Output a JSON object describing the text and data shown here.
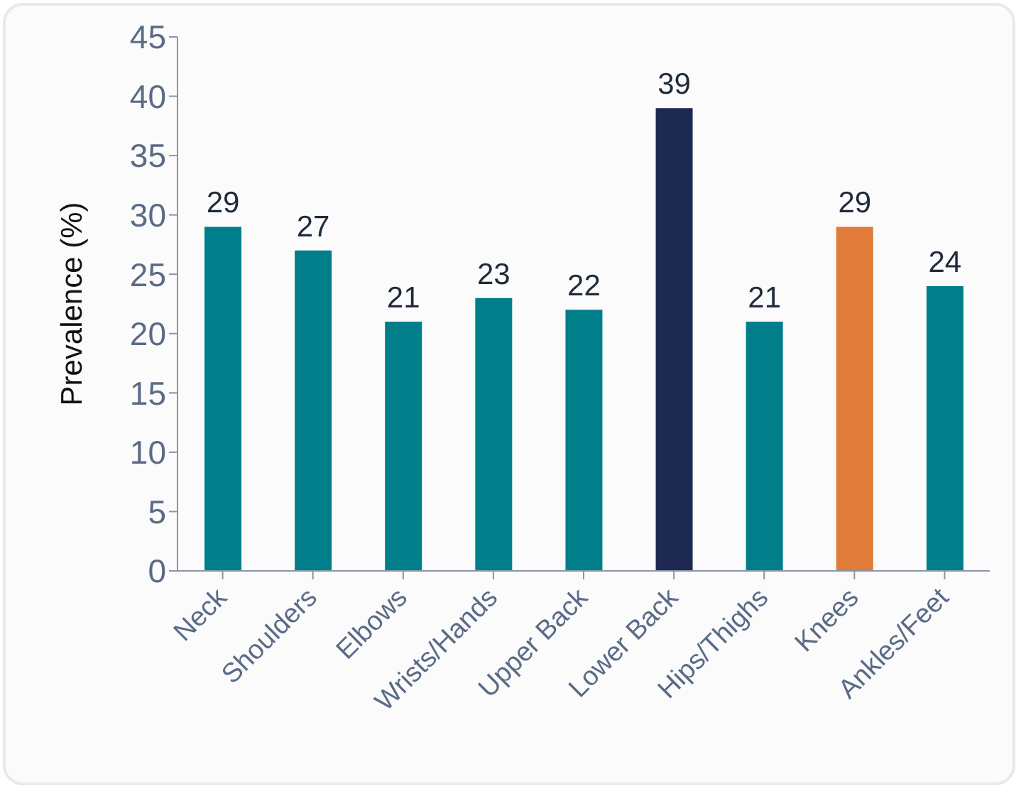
{
  "chart_data": {
    "type": "bar",
    "ylabel": "Prevalence (%)",
    "categories": [
      "Neck",
      "Shoulders",
      "Elbows",
      "Wrists/Hands",
      "Upper Back",
      "Lower Back",
      "Hips/Thighs",
      "Knees",
      "Ankles/Feet"
    ],
    "values": [
      29,
      27,
      21,
      23,
      22,
      39,
      21,
      29,
      24
    ],
    "colors": [
      "#007f8a",
      "#007f8a",
      "#007f8a",
      "#007f8a",
      "#007f8a",
      "#1d2950",
      "#007f8a",
      "#e07b39",
      "#007f8a"
    ],
    "ylim": [
      0,
      45
    ],
    "yticks": [
      0,
      5,
      10,
      15,
      20,
      25,
      30,
      35,
      40,
      45
    ],
    "data_labels": true,
    "grid": false,
    "legend": false
  }
}
